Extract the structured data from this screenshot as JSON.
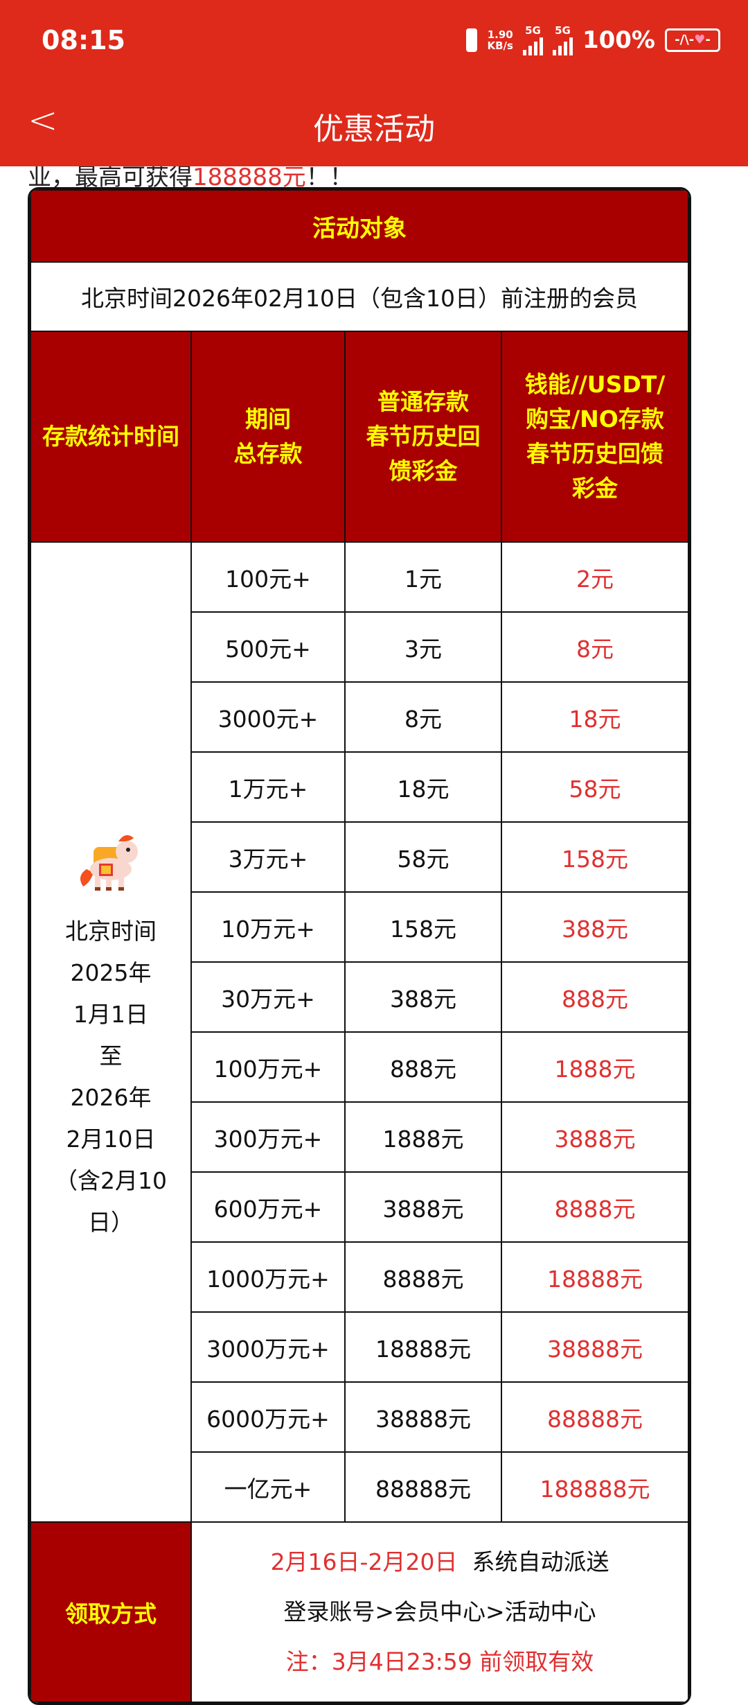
{
  "status_bar": {
    "time": "08:15",
    "net_speed": "1.90",
    "net_unit": "KB/s",
    "sim1": "5G",
    "sim2": "5G",
    "battery": "100%"
  },
  "header": {
    "title": "优惠活动"
  },
  "intro_partial": {
    "text": "业，最高可获得",
    "highlight": "188888元",
    "suffix": "！！"
  },
  "table": {
    "object_title": "活动对象",
    "object_value": "北京时间2026年02月10日（包含10日）前注册的会员",
    "columns": [
      "存款统计时间",
      "期间\n总存款",
      "普通存款\n春节历史回\n馈彩金",
      "钱能//USDT/\n购宝/NO存款\n春节历史回馈\n彩金"
    ],
    "period": [
      "北京时间",
      "2025年",
      "1月1日",
      "至",
      "2026年",
      "2月10日",
      "（含2月10",
      "日）"
    ],
    "rows": [
      [
        "100元+",
        "1元",
        "2元"
      ],
      [
        "500元+",
        "3元",
        "8元"
      ],
      [
        "3000元+",
        "8元",
        "18元"
      ],
      [
        "1万元+",
        "18元",
        "58元"
      ],
      [
        "3万元+",
        "58元",
        "158元"
      ],
      [
        "10万元+",
        "158元",
        "388元"
      ],
      [
        "30万元+",
        "388元",
        "888元"
      ],
      [
        "100万元+",
        "888元",
        "1888元"
      ],
      [
        "300万元+",
        "1888元",
        "3888元"
      ],
      [
        "600万元+",
        "3888元",
        "8888元"
      ],
      [
        "1000万元+",
        "8888元",
        "18888元"
      ],
      [
        "3000万元+",
        "18888元",
        "38888元"
      ],
      [
        "6000万元+",
        "38888元",
        "88888元"
      ],
      [
        "一亿元+",
        "88888元",
        "188888元"
      ]
    ],
    "claim_label": "领取方式",
    "claim_date": "2月16日-2月20日",
    "claim_auto": "系统自动派送",
    "claim_path": "登录账号>会员中心>活动中心",
    "claim_note": "注：3月4日23:59 前领取有效"
  },
  "colors": {
    "topbar": "#de2a1b",
    "header_cell": "#a80000",
    "header_text": "#ffff00",
    "highlight": "#e03030"
  }
}
